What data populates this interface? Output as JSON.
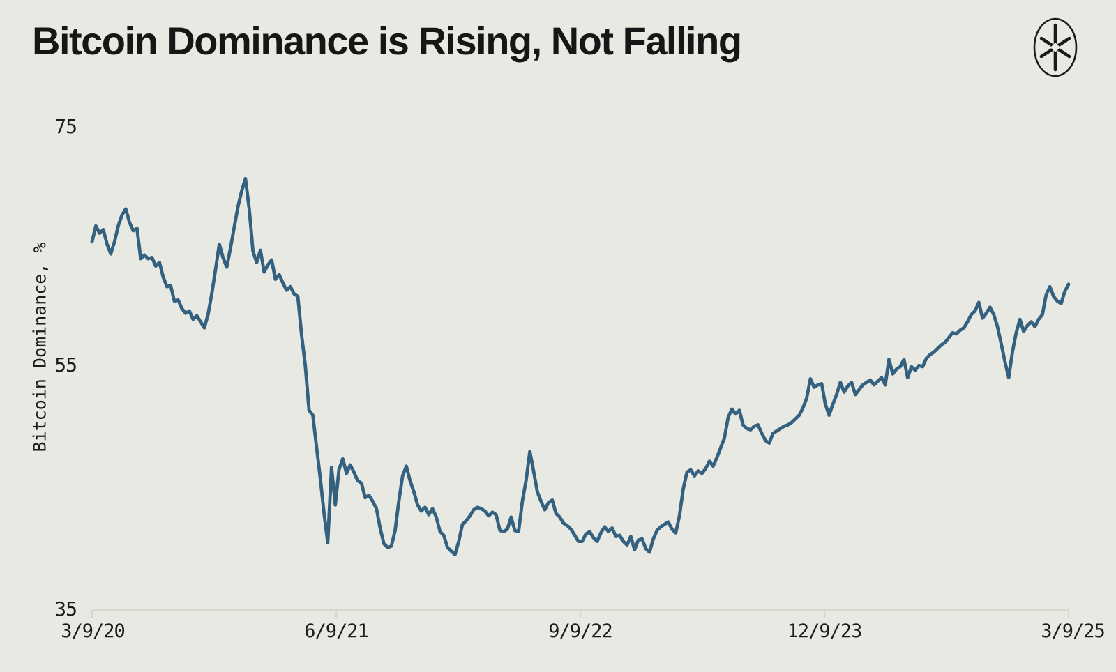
{
  "page": {
    "background_color": "#e9e9e4",
    "title_color": "#161616",
    "accent_color": "#33617f",
    "axis_color": "#d7d7d0"
  },
  "header": {
    "title": "Bitcoin Dominance is Rising, Not Falling",
    "logo_icon": "oval-asterisk-compass-logo"
  },
  "chart_data": {
    "type": "line",
    "title": "Bitcoin Dominance is Rising, Not Falling",
    "xlabel": "",
    "ylabel": "Bitcoin Dominance, %",
    "ylim": [
      35,
      75
    ],
    "y_tick_labels": [
      "75",
      "55",
      "35"
    ],
    "x_tick_labels": [
      "3/9/20",
      "6/9/21",
      "9/9/22",
      "12/9/23",
      "3/9/25"
    ],
    "grid": false,
    "legend_position": "none",
    "line_color": "#33617f",
    "series_name": "Bitcoin Dominance, %",
    "x_start": "3/9/20",
    "x_end": "3/9/25",
    "x_interval": "weekly",
    "values": [
      65.3,
      66.6,
      66.0,
      66.3,
      65.1,
      64.3,
      65.3,
      66.6,
      67.5,
      68.0,
      66.9,
      66.2,
      66.4,
      63.9,
      64.2,
      63.9,
      64.0,
      63.3,
      63.6,
      62.4,
      61.6,
      61.7,
      60.4,
      60.5,
      59.8,
      59.4,
      59.6,
      58.9,
      59.2,
      58.7,
      58.2,
      59.3,
      61.0,
      63.0,
      65.1,
      64.0,
      63.2,
      64.8,
      66.5,
      68.2,
      69.5,
      70.5,
      68.0,
      64.5,
      63.6,
      64.6,
      62.8,
      63.4,
      63.8,
      62.2,
      62.6,
      61.9,
      61.3,
      61.6,
      61.0,
      60.8,
      57.6,
      55.1,
      51.4,
      51.0,
      48.4,
      45.8,
      42.9,
      40.5,
      46.7,
      43.6,
      46.5,
      47.4,
      46.2,
      46.9,
      46.3,
      45.6,
      45.4,
      44.2,
      44.4,
      43.9,
      43.3,
      41.7,
      40.4,
      40.1,
      40.2,
      41.5,
      43.9,
      46.0,
      46.8,
      45.6,
      44.7,
      43.6,
      43.1,
      43.4,
      42.8,
      43.3,
      42.6,
      41.4,
      41.1,
      40.1,
      39.8,
      39.5,
      40.6,
      42.0,
      42.3,
      42.7,
      43.2,
      43.4,
      43.3,
      43.1,
      42.7,
      43.0,
      42.8,
      41.5,
      41.4,
      41.6,
      42.6,
      41.5,
      41.4,
      43.9,
      45.6,
      48.0,
      46.4,
      44.7,
      43.9,
      43.2,
      43.8,
      44.0,
      42.9,
      42.6,
      42.1,
      41.9,
      41.6,
      41.1,
      40.6,
      40.6,
      41.2,
      41.4,
      40.9,
      40.6,
      41.3,
      41.8,
      41.4,
      41.7,
      41.0,
      41.1,
      40.6,
      40.3,
      41.0,
      39.9,
      40.7,
      40.8,
      40.0,
      39.7,
      40.8,
      41.5,
      41.8,
      42.0,
      42.2,
      41.6,
      41.3,
      42.7,
      44.9,
      46.3,
      46.5,
      46.0,
      46.4,
      46.2,
      46.6,
      47.2,
      46.8,
      47.5,
      48.3,
      49.1,
      50.8,
      51.5,
      51.1,
      51.4,
      50.2,
      49.9,
      49.8,
      50.1,
      50.2,
      49.5,
      48.9,
      48.7,
      49.5,
      49.7,
      49.9,
      50.1,
      50.2,
      50.4,
      50.7,
      51.0,
      51.6,
      52.4,
      54.0,
      53.3,
      53.5,
      53.6,
      51.9,
      51.0,
      51.9,
      52.7,
      53.7,
      52.9,
      53.4,
      53.7,
      52.7,
      53.1,
      53.5,
      53.7,
      53.9,
      53.5,
      53.8,
      54.1,
      53.5,
      55.6,
      54.4,
      54.8,
      55.0,
      55.6,
      54.1,
      55.0,
      54.7,
      55.1,
      55.0,
      55.7,
      56.0,
      56.2,
      56.5,
      56.8,
      57.0,
      57.4,
      57.8,
      57.7,
      58.0,
      58.2,
      58.7,
      59.3,
      59.6,
      60.3,
      59.0,
      59.4,
      59.9,
      59.3,
      58.3,
      56.9,
      55.4,
      54.1,
      56.2,
      57.8,
      58.9,
      57.9,
      58.4,
      58.7,
      58.3,
      58.9,
      59.3,
      60.9,
      61.6,
      60.8,
      60.4,
      60.2,
      61.2,
      61.8
    ]
  }
}
